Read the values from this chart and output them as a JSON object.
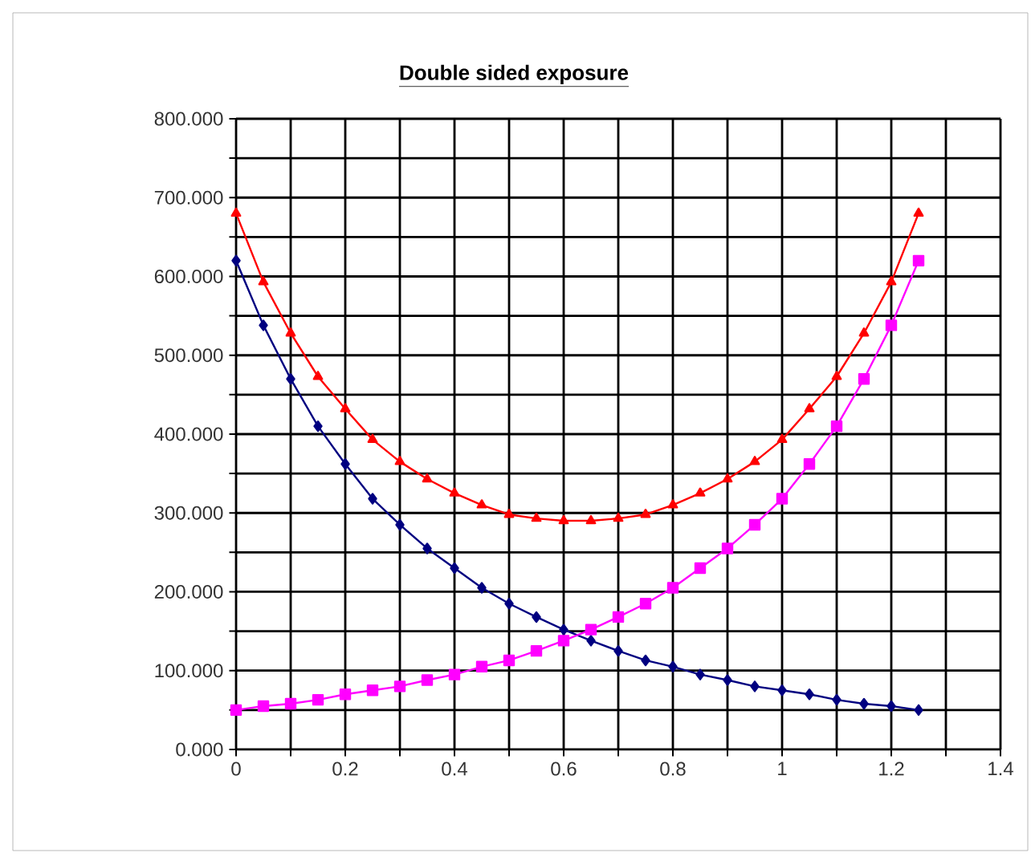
{
  "chart_data": {
    "type": "line",
    "title": "Double sided exposure",
    "x": [
      0,
      0.05,
      0.1,
      0.15,
      0.2,
      0.25,
      0.3,
      0.35,
      0.4,
      0.45,
      0.5,
      0.55,
      0.6,
      0.65,
      0.7,
      0.75,
      0.8,
      0.85,
      0.9,
      0.95,
      1.0,
      1.05,
      1.1,
      1.15,
      1.2,
      1.25
    ],
    "series": [
      {
        "color": "#000080",
        "marker": "diamond",
        "values": [
          620,
          538,
          470,
          410,
          362,
          318,
          285,
          255,
          230,
          205,
          185,
          168,
          152,
          138,
          125,
          113,
          105,
          95,
          88,
          80,
          75,
          70,
          63,
          58,
          55,
          50
        ]
      },
      {
        "color": "#ff00ff",
        "marker": "square",
        "values": [
          50,
          55,
          58,
          63,
          70,
          75,
          80,
          88,
          95,
          105,
          113,
          125,
          138,
          152,
          168,
          185,
          205,
          230,
          255,
          285,
          318,
          362,
          410,
          470,
          538,
          620
        ]
      },
      {
        "color": "#ff0000",
        "marker": "triangle",
        "values": [
          680,
          593,
          528,
          473,
          432,
          393,
          365,
          343,
          325,
          310,
          298,
          293,
          290,
          290,
          293,
          298,
          310,
          325,
          343,
          365,
          393,
          432,
          473,
          528,
          593,
          680
        ]
      }
    ],
    "xlim": [
      0,
      1.4
    ],
    "ylim": [
      0,
      800
    ],
    "xticks": [
      0,
      {
        "value": 0.1,
        "label": null
      },
      0.2,
      {
        "value": 0.3,
        "label": null
      },
      0.4,
      {
        "value": 0.5,
        "label": null
      },
      0.6,
      {
        "value": 0.7,
        "label": null
      },
      0.8,
      {
        "value": 0.9,
        "label": null
      },
      1,
      {
        "value": 1.1,
        "label": null
      },
      1.2,
      {
        "value": 1.3,
        "label": null
      },
      1.4
    ],
    "yticks": [
      {
        "value": 0,
        "label": "0.000"
      },
      {
        "value": 50,
        "label": null
      },
      {
        "value": 100,
        "label": "100.000"
      },
      {
        "value": 150,
        "label": null
      },
      {
        "value": 200,
        "label": "200.000"
      },
      {
        "value": 250,
        "label": null
      },
      {
        "value": 300,
        "label": "300.000"
      },
      {
        "value": 350,
        "label": null
      },
      {
        "value": 400,
        "label": "400.000"
      },
      {
        "value": 450,
        "label": null
      },
      {
        "value": 500,
        "label": "500.000"
      },
      {
        "value": 550,
        "label": null
      },
      {
        "value": 600,
        "label": "600.000"
      },
      {
        "value": 650,
        "label": null
      },
      {
        "value": 700,
        "label": "700.000"
      },
      {
        "value": 750,
        "label": null
      },
      {
        "value": 800,
        "label": "800.000"
      }
    ],
    "grid": true
  }
}
